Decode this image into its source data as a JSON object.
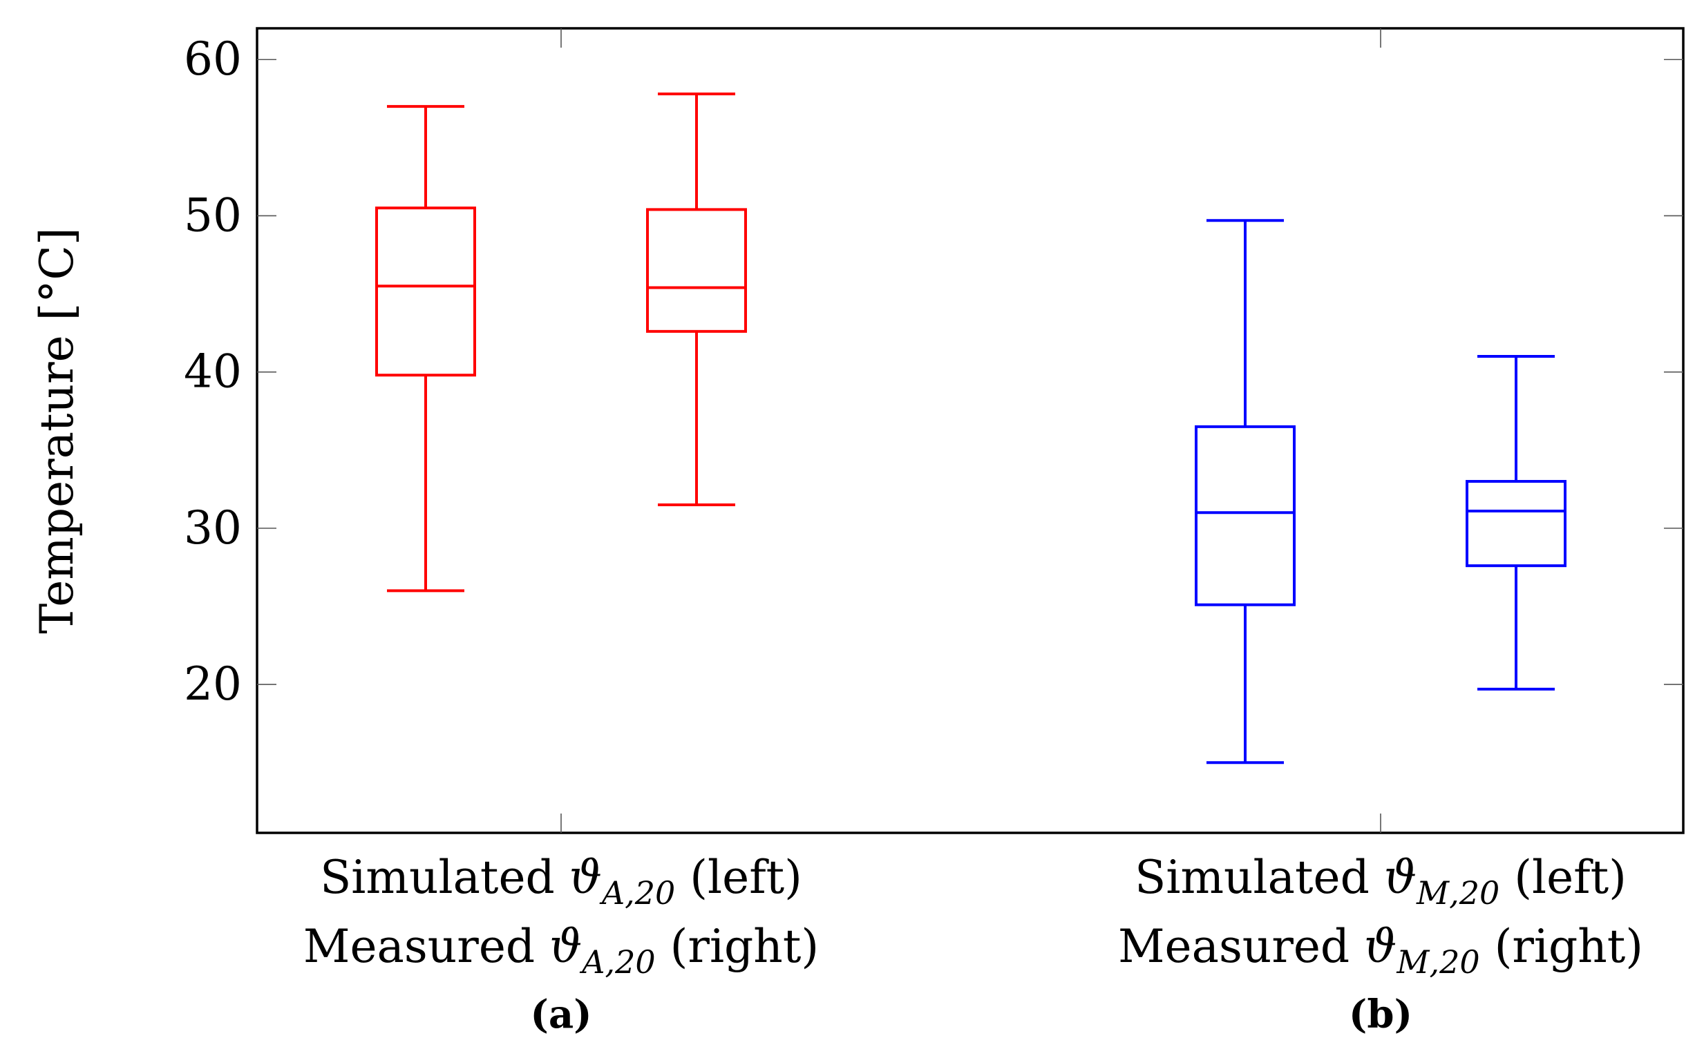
{
  "chart_data": {
    "type": "boxplot",
    "ylabel": "Temperature [°C]",
    "ylim": [
      10.5,
      62
    ],
    "yticks": [
      20,
      30,
      40,
      50,
      60
    ],
    "grid": false,
    "groups": [
      {
        "panel": "(a)",
        "label_line1": {
          "prefix": "Simulated ",
          "symbol": "ϑ",
          "sub": "A,20",
          "suffix": " (left)"
        },
        "label_line2": {
          "prefix": "Measured ",
          "symbol": "ϑ",
          "sub": "A,20",
          "suffix": " (right)"
        },
        "color": "#ff0000",
        "boxes": [
          {
            "name": "Simulated ϑA,20",
            "min": 26.0,
            "q1": 39.8,
            "median": 45.5,
            "q3": 50.5,
            "max": 57.0
          },
          {
            "name": "Measured ϑA,20",
            "min": 31.5,
            "q1": 42.6,
            "median": 45.4,
            "q3": 50.4,
            "max": 57.8
          }
        ]
      },
      {
        "panel": "(b)",
        "label_line1": {
          "prefix": "Simulated ",
          "symbol": "ϑ",
          "sub": "M,20",
          "suffix": " (left)"
        },
        "label_line2": {
          "prefix": "Measured ",
          "symbol": "ϑ",
          "sub": "M,20",
          "suffix": " (right)"
        },
        "color": "#0000ff",
        "boxes": [
          {
            "name": "Simulated ϑM,20",
            "min": 15.0,
            "q1": 25.1,
            "median": 31.0,
            "q3": 36.5,
            "max": 49.7
          },
          {
            "name": "Measured ϑM,20",
            "min": 19.7,
            "q1": 27.6,
            "median": 31.1,
            "q3": 33.0,
            "max": 41.0
          }
        ]
      }
    ]
  }
}
